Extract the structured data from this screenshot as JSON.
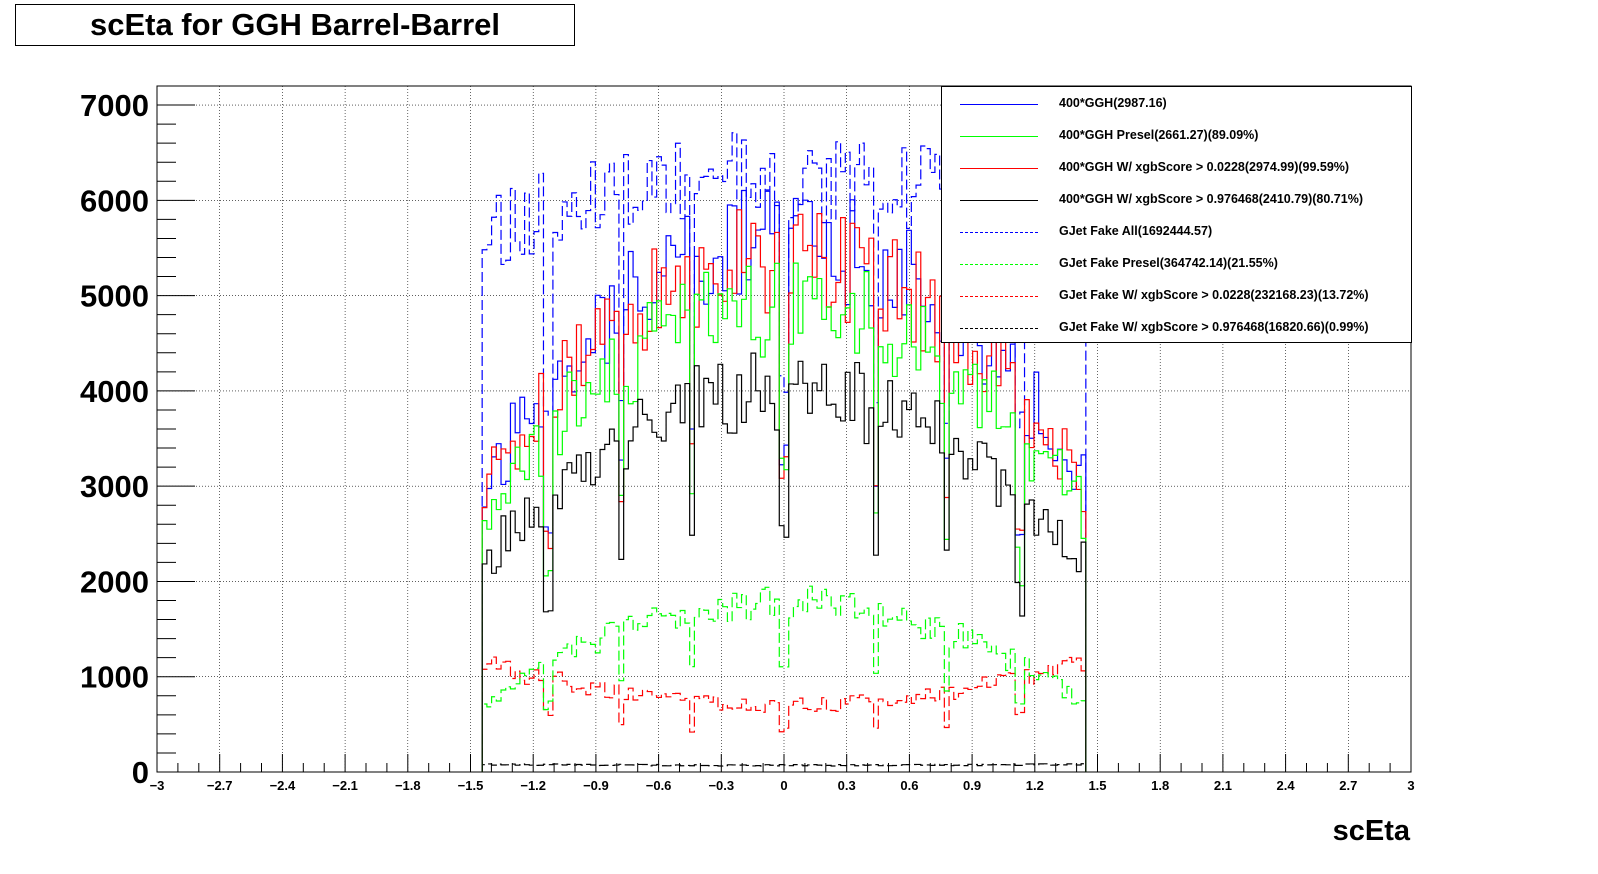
{
  "chart_data": {
    "type": "histogram",
    "title": "scEta for GGH Barrel-Barrel",
    "xlabel": "scEta",
    "ylabel": "",
    "xlim": [
      -3,
      3
    ],
    "ylim": [
      0,
      7200
    ],
    "x_ticks": [
      "−3",
      "−2.7",
      "−2.4",
      "−2.1",
      "−1.8",
      "−1.5",
      "−1.2",
      "−0.9",
      "−0.6",
      "−0.3",
      "0",
      "0.3",
      "0.6",
      "0.9",
      "1.2",
      "1.5",
      "1.8",
      "2.1",
      "2.4",
      "2.7",
      "3"
    ],
    "y_ticks": [
      "0",
      "1000",
      "2000",
      "3000",
      "4000",
      "5000",
      "6000",
      "7000"
    ],
    "grid": true,
    "legend_position": "top-right",
    "binning": {
      "range": [
        -1.4442,
        1.4442
      ],
      "bins": 128
    },
    "series": [
      {
        "name": "400*GGH(2987.16)",
        "color": "#0000ff",
        "style": "solid",
        "profile": {
          "edge": 3000,
          "center": 5600,
          "seed": 11
        }
      },
      {
        "name": "400*GGH Presel(2661.27)(89.09%)",
        "color": "#00ff00",
        "style": "solid",
        "profile": {
          "edge": 2700,
          "center": 4900,
          "seed": 23
        }
      },
      {
        "name": "400*GGH W/ xgbScore > 0.0228(2974.99)(99.59%)",
        "color": "#ff0000",
        "style": "solid",
        "profile": {
          "edge": 3000,
          "center": 5400,
          "seed": 37
        }
      },
      {
        "name": "400*GGH W/ xgbScore > 0.976468(2410.79)(80.71%)",
        "color": "#000000",
        "style": "solid",
        "profile": {
          "edge": 2200,
          "center": 4000,
          "seed": 53
        }
      },
      {
        "name": "GJet Fake All(1692444.57)",
        "color": "#0000ff",
        "style": "dashed",
        "profile": {
          "edge": 5700,
          "center": 6250,
          "seed": 71
        }
      },
      {
        "name": "GJet Fake Presel(364742.14)(21.55%)",
        "color": "#00ff00",
        "style": "dashed",
        "profile": {
          "edge": 700,
          "center": 1800,
          "seed": 83
        }
      },
      {
        "name": "GJet Fake W/ xgbScore > 0.0228(232168.23)(13.72%)",
        "color": "#ff0000",
        "style": "dashed",
        "profile": {
          "edge": 1150,
          "center": 700,
          "seed": 97
        }
      },
      {
        "name": "GJet Fake W/ xgbScore > 0.976468(16820.66)(0.99%)",
        "color": "#000000",
        "style": "dashed",
        "profile": {
          "edge": 80,
          "center": 70,
          "seed": 101
        }
      }
    ]
  }
}
